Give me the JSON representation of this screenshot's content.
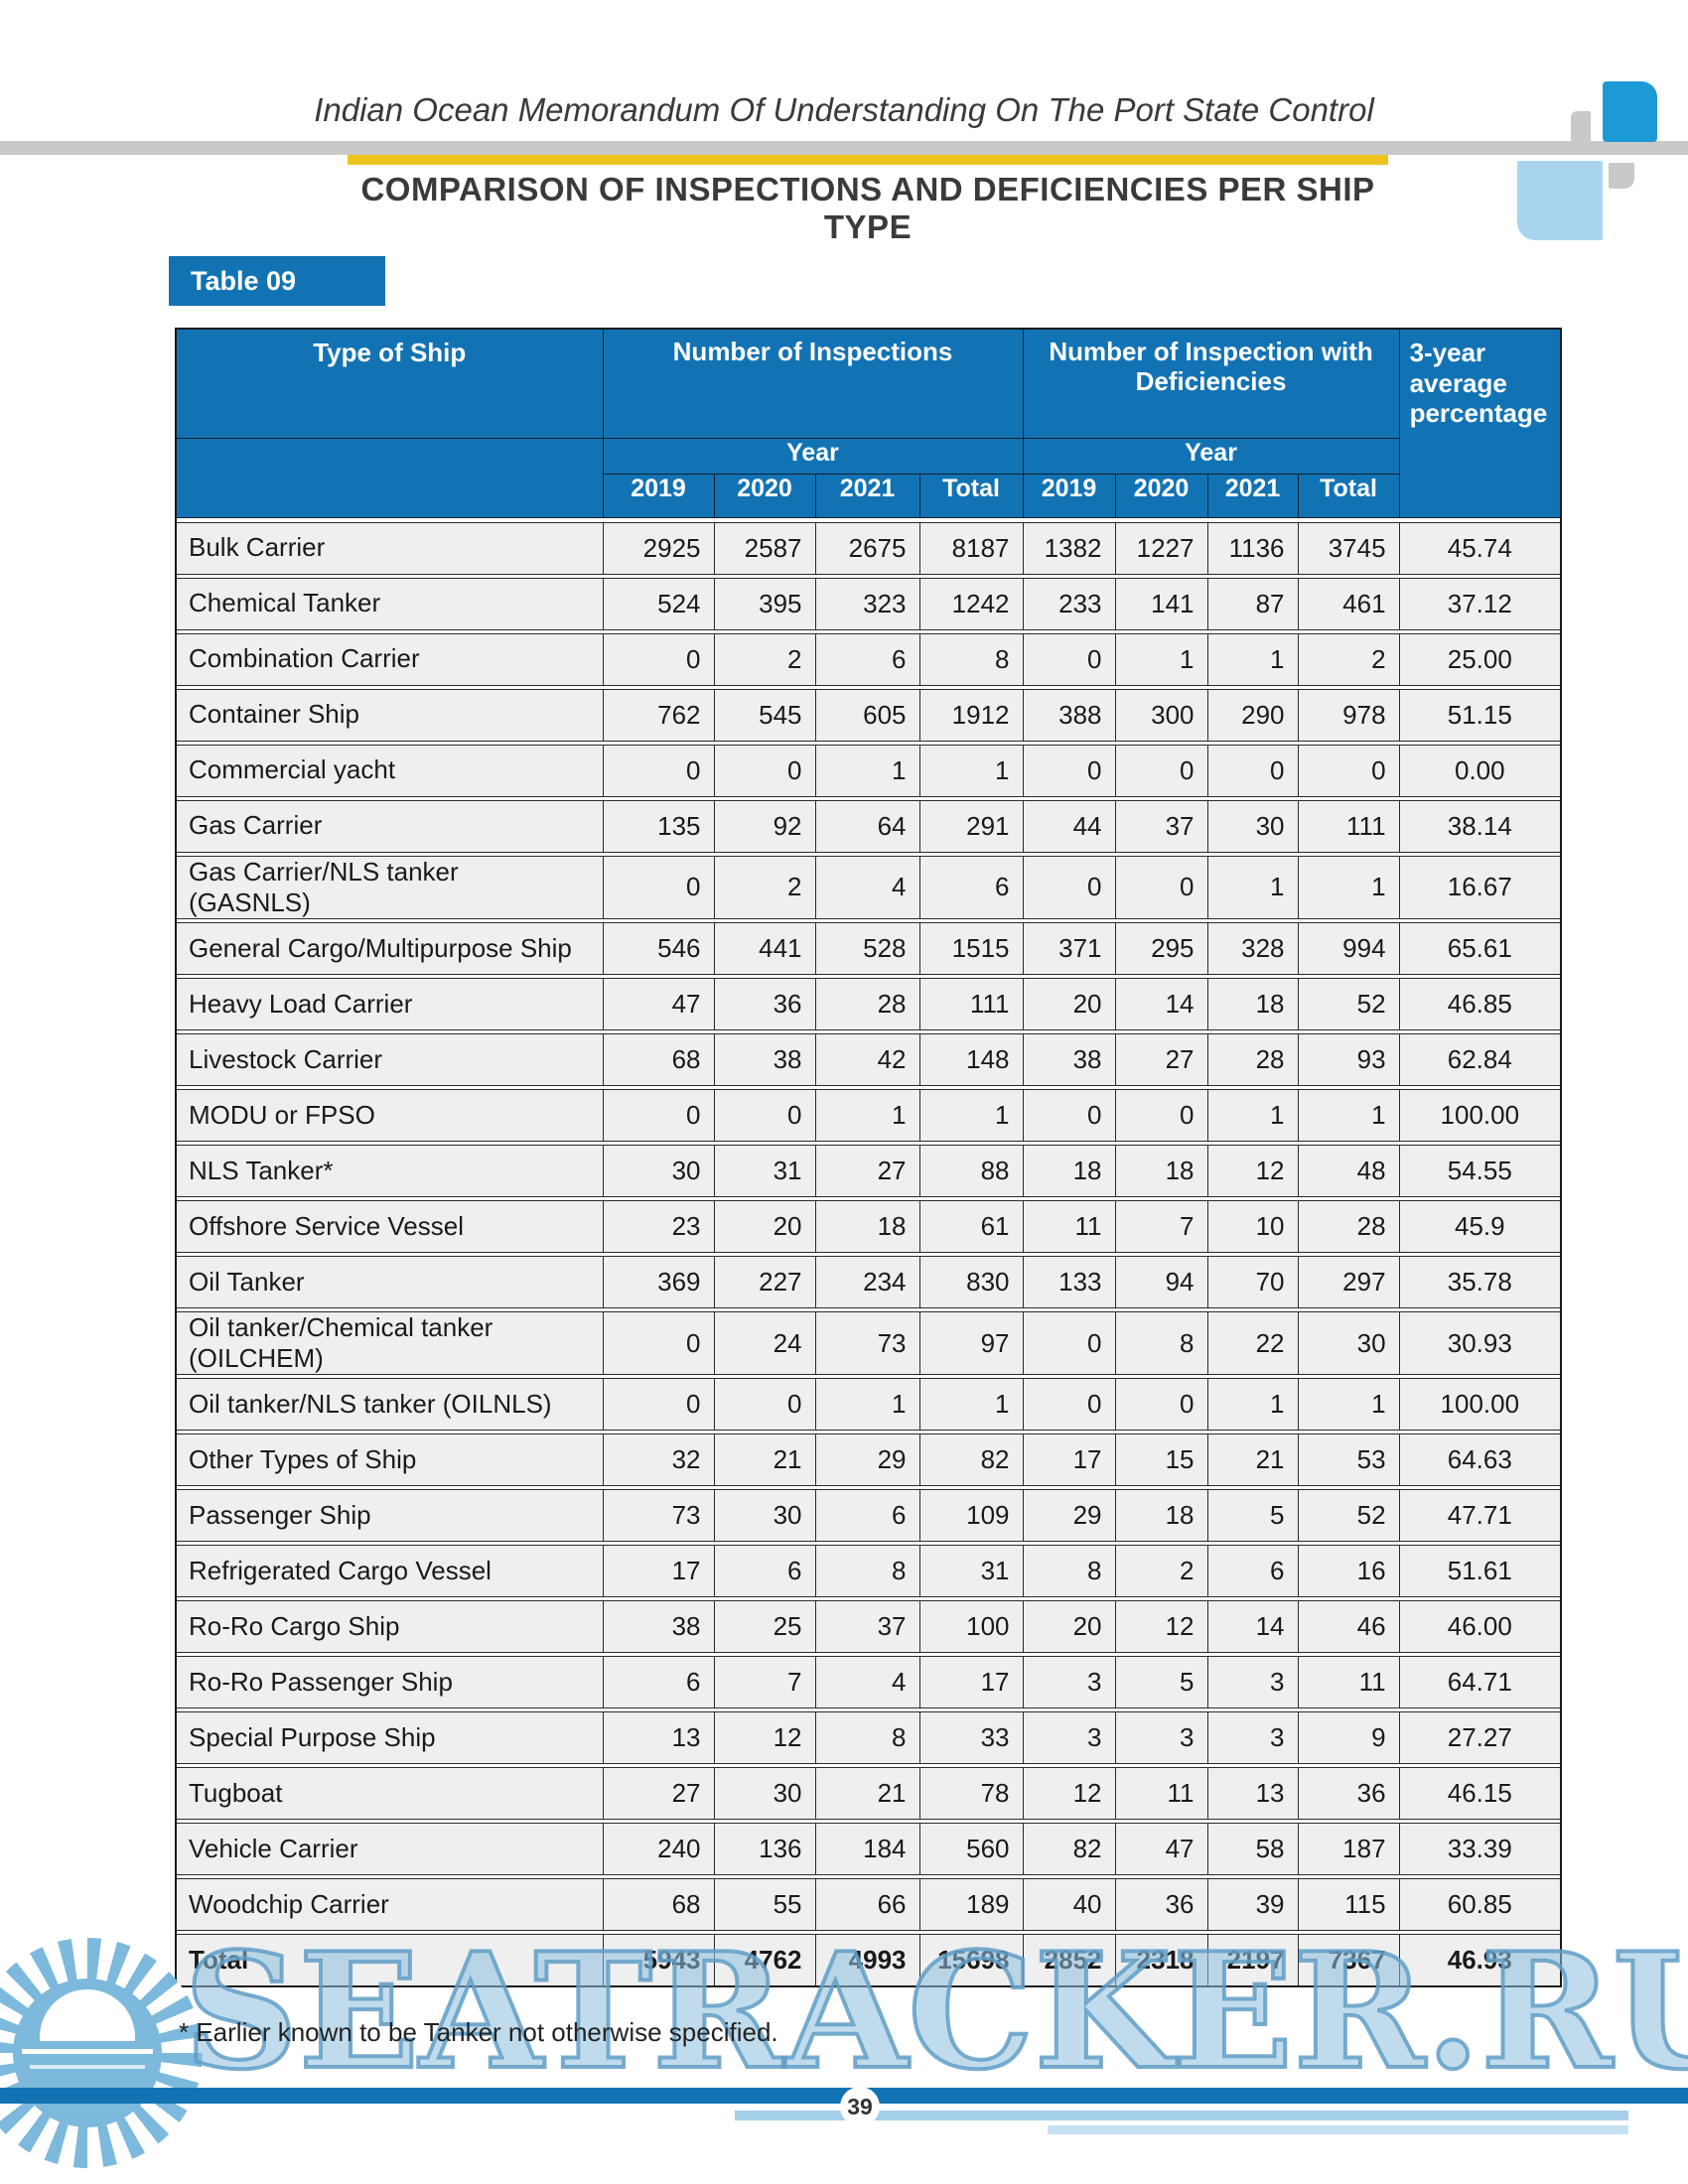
{
  "header": {
    "doc_title": "Indian Ocean Memorandum Of Understanding On The Port State Control",
    "page_title": "COMPARISON OF INSPECTIONS AND DEFICIENCIES PER SHIP TYPE",
    "table_label": "Table 09"
  },
  "table": {
    "col_ship": "Type of Ship",
    "group1": "Number of Inspections",
    "group2": "Number of Inspection with Deficiencies",
    "col_avg": "3-year average percentage",
    "year_label": "Year",
    "years": [
      "2019",
      "2020",
      "2021",
      "Total"
    ],
    "rows": [
      {
        "name": "Bulk Carrier",
        "values": [
          "2925",
          "2587",
          "2675",
          "8187",
          "1382",
          "1227",
          "1136",
          "3745",
          "45.74"
        ]
      },
      {
        "name": "Chemical Tanker",
        "values": [
          "524",
          "395",
          "323",
          "1242",
          "233",
          "141",
          "87",
          "461",
          "37.12"
        ]
      },
      {
        "name": "Combination Carrier",
        "values": [
          "0",
          "2",
          "6",
          "8",
          "0",
          "1",
          "1",
          "2",
          "25.00"
        ]
      },
      {
        "name": "Container Ship",
        "values": [
          "762",
          "545",
          "605",
          "1912",
          "388",
          "300",
          "290",
          "978",
          "51.15"
        ]
      },
      {
        "name": "Commercial yacht",
        "values": [
          "0",
          "0",
          "1",
          "1",
          "0",
          "0",
          "0",
          "0",
          "0.00"
        ]
      },
      {
        "name": "Gas Carrier",
        "values": [
          "135",
          "92",
          "64",
          "291",
          "44",
          "37",
          "30",
          "111",
          "38.14"
        ]
      },
      {
        "name": "Gas Carrier/NLS tanker\n(GASNLS)",
        "values": [
          "0",
          "2",
          "4",
          "6",
          "0",
          "0",
          "1",
          "1",
          "16.67"
        ]
      },
      {
        "name": "General Cargo/Multipurpose Ship",
        "values": [
          "546",
          "441",
          "528",
          "1515",
          "371",
          "295",
          "328",
          "994",
          "65.61"
        ]
      },
      {
        "name": "Heavy Load Carrier",
        "values": [
          "47",
          "36",
          "28",
          "111",
          "20",
          "14",
          "18",
          "52",
          "46.85"
        ]
      },
      {
        "name": "Livestock Carrier",
        "values": [
          "68",
          "38",
          "42",
          "148",
          "38",
          "27",
          "28",
          "93",
          "62.84"
        ]
      },
      {
        "name": "MODU or FPSO",
        "values": [
          "0",
          "0",
          "1",
          "1",
          "0",
          "0",
          "1",
          "1",
          "100.00"
        ]
      },
      {
        "name": "NLS Tanker*",
        "values": [
          "30",
          "31",
          "27",
          "88",
          "18",
          "18",
          "12",
          "48",
          "54.55"
        ]
      },
      {
        "name": "Offshore Service Vessel",
        "values": [
          "23",
          "20",
          "18",
          "61",
          "11",
          "7",
          "10",
          "28",
          "45.9"
        ]
      },
      {
        "name": "Oil Tanker",
        "values": [
          "369",
          "227",
          "234",
          "830",
          "133",
          "94",
          "70",
          "297",
          "35.78"
        ]
      },
      {
        "name": "Oil tanker/Chemical tanker\n(OILCHEM)",
        "values": [
          "0",
          "24",
          "73",
          "97",
          "0",
          "8",
          "22",
          "30",
          "30.93"
        ]
      },
      {
        "name": "Oil tanker/NLS tanker (OILNLS)",
        "values": [
          "0",
          "0",
          "1",
          "1",
          "0",
          "0",
          "1",
          "1",
          "100.00"
        ]
      },
      {
        "name": "Other Types of Ship",
        "values": [
          "32",
          "21",
          "29",
          "82",
          "17",
          "15",
          "21",
          "53",
          "64.63"
        ]
      },
      {
        "name": "Passenger Ship",
        "values": [
          "73",
          "30",
          "6",
          "109",
          "29",
          "18",
          "5",
          "52",
          "47.71"
        ]
      },
      {
        "name": "Refrigerated Cargo Vessel",
        "values": [
          "17",
          "6",
          "8",
          "31",
          "8",
          "2",
          "6",
          "16",
          "51.61"
        ]
      },
      {
        "name": "Ro-Ro Cargo Ship",
        "values": [
          "38",
          "25",
          "37",
          "100",
          "20",
          "12",
          "14",
          "46",
          "46.00"
        ]
      },
      {
        "name": "Ro-Ro Passenger Ship",
        "values": [
          "6",
          "7",
          "4",
          "17",
          "3",
          "5",
          "3",
          "11",
          "64.71"
        ]
      },
      {
        "name": "Special Purpose Ship",
        "values": [
          "13",
          "12",
          "8",
          "33",
          "3",
          "3",
          "3",
          "9",
          "27.27"
        ]
      },
      {
        "name": "Tugboat",
        "values": [
          "27",
          "30",
          "21",
          "78",
          "12",
          "11",
          "13",
          "36",
          "46.15"
        ]
      },
      {
        "name": "Vehicle Carrier",
        "values": [
          "240",
          "136",
          "184",
          "560",
          "82",
          "47",
          "58",
          "187",
          "33.39"
        ]
      },
      {
        "name": "Woodchip Carrier",
        "values": [
          "68",
          "55",
          "66",
          "189",
          "40",
          "36",
          "39",
          "115",
          "60.85"
        ]
      },
      {
        "name": "Total",
        "bold": true,
        "values": [
          "5943",
          "4762",
          "4993",
          "15698",
          "2852",
          "2318",
          "2197",
          "7367",
          "46.93"
        ]
      }
    ]
  },
  "footnote": "* Earlier known to be Tanker not otherwise specified.",
  "watermark": "SEATRACKER.RU",
  "page_number": "39",
  "colors": {
    "header_blue": "#1273b4",
    "accent_yellow": "#eec31e",
    "divider_gray": "#c9c9c9",
    "row_gray": "#efefef",
    "bright_blue_square": "#1c9ad6",
    "light_blue_square": "#a9d6ee",
    "watermark_blue": "#7cb9dc"
  }
}
